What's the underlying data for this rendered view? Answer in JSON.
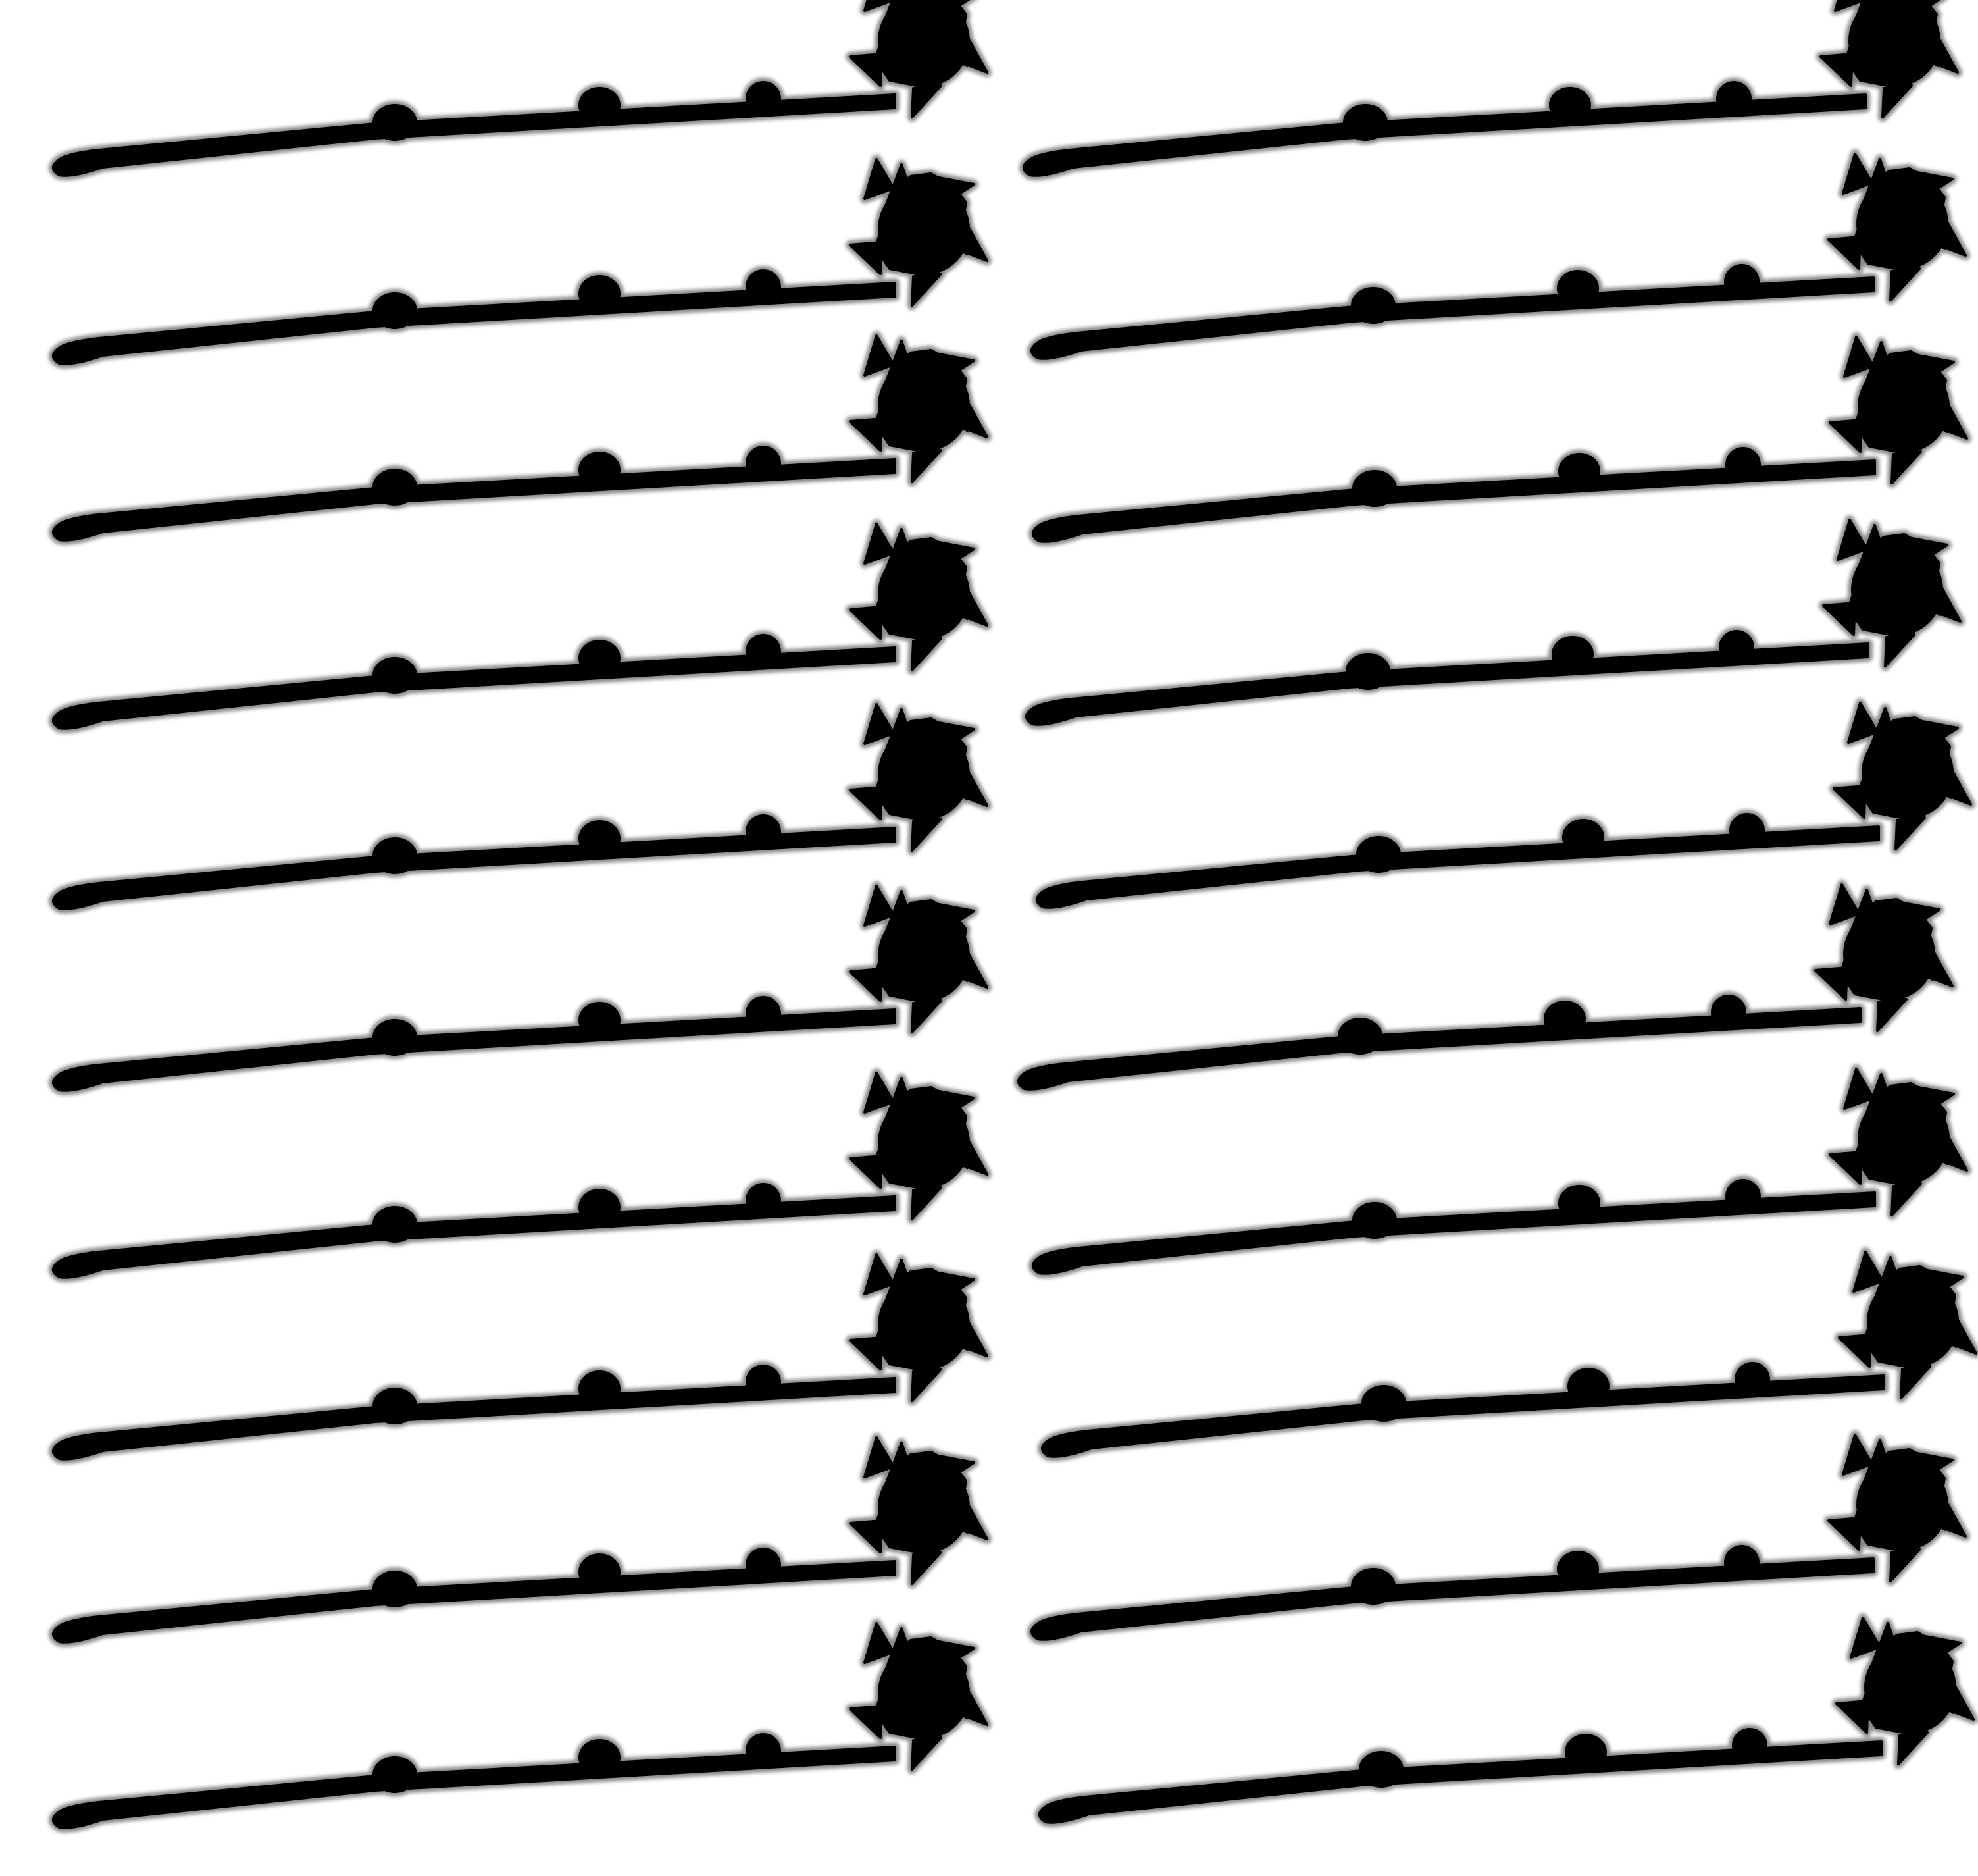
{
  "colors": {
    "background": "#ffffff",
    "fill": "#000000",
    "outline": "#8a8a8a"
  },
  "sheet": {
    "columns": 2,
    "rows": 10,
    "item": {
      "name": "swizzle stick",
      "icon": "stir-stick-with-pinwheel-top-icon"
    }
  }
}
